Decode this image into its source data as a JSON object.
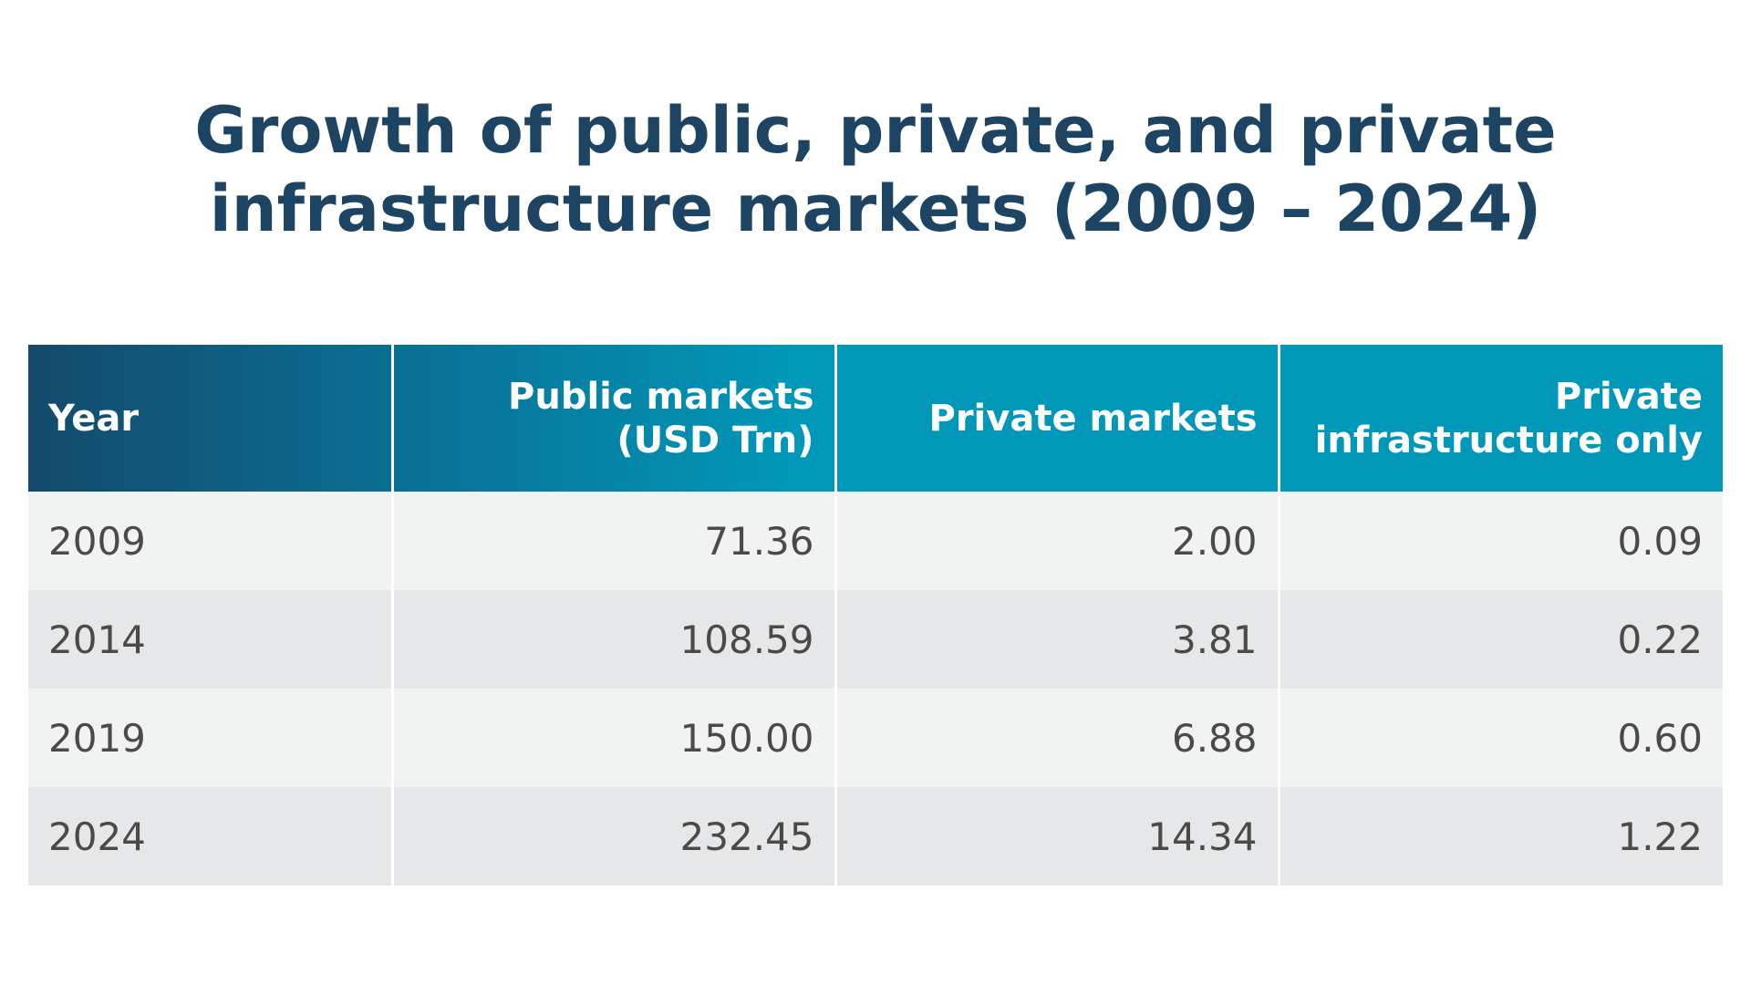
{
  "title_line1": "Growth of public, private, and private",
  "title_line2": "infrastructure markets (2009 – 2024)",
  "table": {
    "headers": [
      "Year",
      "Public markets (USD Trn)",
      "Private markets",
      "Private infrastructure only"
    ],
    "rows": [
      [
        "2009",
        "71.36",
        "2.00",
        "0.09"
      ],
      [
        "2014",
        "108.59",
        "3.81",
        "0.22"
      ],
      [
        "2019",
        "150.00",
        "6.88",
        "0.60"
      ],
      [
        "2024",
        "232.45",
        "14.34",
        "1.22"
      ]
    ]
  },
  "colors": {
    "title": "#1d4563",
    "header_dark": "#134a6b",
    "header_light": "#0097b8",
    "row_odd": "#f1f2f2",
    "row_even": "#e6e7e8"
  }
}
